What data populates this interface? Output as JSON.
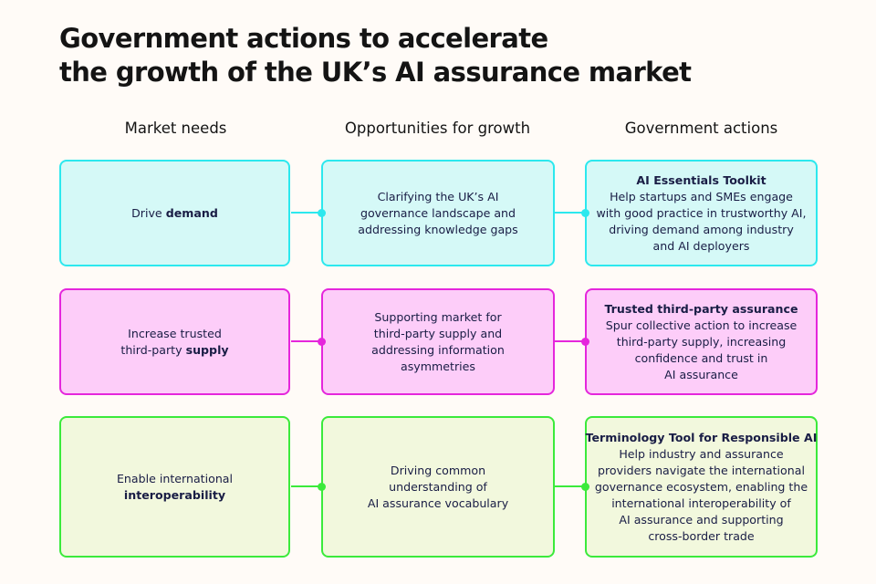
{
  "title": [
    "Government actions to accelerate",
    "the growth of the UK’s AI assurance market"
  ],
  "columns": [
    "Market needs",
    "Opportunities for growth",
    "Government actions"
  ],
  "colors": {
    "demand": "#2ce8ee",
    "supply": "#e526dc",
    "interoperability": "#3bea3b",
    "text": "#191d45"
  },
  "rows": [
    {
      "need": {
        "line1_pre": "Drive ",
        "line1_bold": "demand",
        "line2_pre": "",
        "line2_bold": ""
      },
      "opportunity": [
        "Clarifying the UK’s AI",
        "governance landscape and",
        "addressing knowledge gaps"
      ],
      "action": {
        "title": "AI Essentials Toolkit",
        "lines": [
          "Help startups and SMEs engage",
          "with good practice in trustworthy AI,",
          "driving demand among industry",
          "and AI deployers"
        ]
      }
    },
    {
      "need": {
        "line1_pre": "Increase trusted",
        "line1_bold": "",
        "line2_pre": "third-party ",
        "line2_bold": "supply"
      },
      "opportunity": [
        "Supporting market for",
        "third-party supply and",
        "addressing information",
        "asymmetries"
      ],
      "action": {
        "title": "Trusted third-party assurance",
        "lines": [
          "Spur collective action to increase",
          "third-party supply, increasing",
          "confidence and trust in",
          "AI assurance"
        ]
      }
    },
    {
      "need": {
        "line1_pre": "Enable international",
        "line1_bold": "",
        "line2_pre": "",
        "line2_bold": "interoperability"
      },
      "opportunity": [
        "Driving common",
        "understanding of",
        "AI assurance vocabulary"
      ],
      "action": {
        "title": "Terminology Tool for Responsible AI",
        "lines": [
          "Help industry and assurance",
          "providers navigate the international",
          "governance ecosystem, enabling the",
          "international interoperability of",
          "AI assurance and supporting",
          "cross-border trade"
        ]
      }
    }
  ]
}
